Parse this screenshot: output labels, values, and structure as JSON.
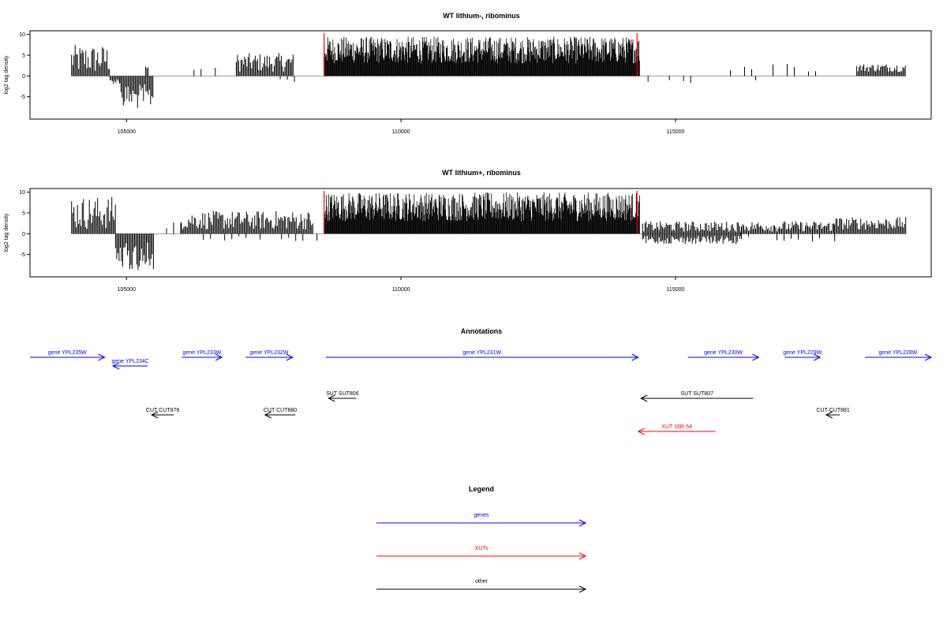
{
  "chart_data": [
    {
      "type": "bar",
      "title": "WT lithium-, ribominus",
      "ylabel": "log2 tag density",
      "xlabel": "",
      "xlim": [
        103300,
        119600
      ],
      "ylim": [
        -10,
        10.5
      ],
      "x_ticks": [
        "105000",
        "110000",
        "115000"
      ],
      "y_ticks": [
        "10",
        "5",
        "0",
        "-5"
      ],
      "grid": false,
      "boundary_markers": [
        108600,
        114300
      ],
      "segments": [
        {
          "x_start": 104000,
          "x_end": 104700,
          "min": 0.5,
          "max": 7.5,
          "sign": "positive"
        },
        {
          "x_start": 104700,
          "x_end": 104900,
          "min": 0.5,
          "max": 2,
          "sign": "negative"
        },
        {
          "x_start": 104900,
          "x_end": 105500,
          "min": 2,
          "max": 8,
          "sign": "negative"
        },
        {
          "x_start": 105350,
          "x_end": 105400,
          "min": 1,
          "max": 2.5,
          "sign": "positive"
        },
        {
          "x_start": 106100,
          "x_end": 106800,
          "min": 1,
          "max": 2,
          "sign": "positive",
          "sparse": true
        },
        {
          "x_start": 107000,
          "x_end": 108050,
          "min": 1,
          "max": 5.5,
          "sign": "positive"
        },
        {
          "x_start": 107800,
          "x_end": 108300,
          "min": 0.5,
          "max": 2.5,
          "sign": "negative",
          "sparse": true
        },
        {
          "x_start": 108600,
          "x_end": 114350,
          "min": 3,
          "max": 9.5,
          "sign": "positive",
          "dense": true
        },
        {
          "x_start": 114500,
          "x_end": 115400,
          "min": 1,
          "max": 2,
          "sign": "negative",
          "sparse": true
        },
        {
          "x_start": 116000,
          "x_end": 117600,
          "min": 1,
          "max": 3,
          "sign": "positive",
          "sparse": true
        },
        {
          "x_start": 116200,
          "x_end": 116700,
          "min": 1,
          "max": 2,
          "sign": "negative",
          "sparse": true
        },
        {
          "x_start": 118300,
          "x_end": 119200,
          "min": 1,
          "max": 3,
          "sign": "positive"
        }
      ]
    },
    {
      "type": "bar",
      "title": "WT lithium+, ribominus",
      "ylabel": "log2 tag density",
      "xlabel": "",
      "xlim": [
        103300,
        119600
      ],
      "ylim": [
        -10,
        10.5
      ],
      "x_ticks": [
        "105000",
        "110000",
        "115000"
      ],
      "y_ticks": [
        "10",
        "5",
        "0",
        "-5"
      ],
      "grid": false,
      "boundary_markers": [
        108600,
        114300
      ],
      "segments": [
        {
          "x_start": 104000,
          "x_end": 104800,
          "min": 1,
          "max": 9,
          "sign": "positive"
        },
        {
          "x_start": 104800,
          "x_end": 105500,
          "min": 2,
          "max": 9,
          "sign": "negative"
        },
        {
          "x_start": 105600,
          "x_end": 105900,
          "min": 0.5,
          "max": 3,
          "sign": "negative",
          "sparse": true
        },
        {
          "x_start": 105600,
          "x_end": 106000,
          "min": 1,
          "max": 3.5,
          "sign": "positive",
          "sparse": true
        },
        {
          "x_start": 106000,
          "x_end": 108400,
          "min": 1,
          "max": 5.5,
          "sign": "positive"
        },
        {
          "x_start": 106400,
          "x_end": 108500,
          "min": 0.5,
          "max": 2,
          "sign": "negative",
          "sparse": true
        },
        {
          "x_start": 108600,
          "x_end": 114350,
          "min": 3,
          "max": 10,
          "sign": "positive",
          "dense": true
        },
        {
          "x_start": 114400,
          "x_end": 116200,
          "min": 0.5,
          "max": 3,
          "sign": "positive"
        },
        {
          "x_start": 114400,
          "x_end": 116200,
          "min": 0.5,
          "max": 2.5,
          "sign": "negative"
        },
        {
          "x_start": 116200,
          "x_end": 117900,
          "min": 0.5,
          "max": 3,
          "sign": "positive"
        },
        {
          "x_start": 116200,
          "x_end": 117900,
          "min": 0.5,
          "max": 2,
          "sign": "negative",
          "sparse": true
        },
        {
          "x_start": 117900,
          "x_end": 119200,
          "min": 1,
          "max": 4,
          "sign": "positive"
        },
        {
          "x_start": 117900,
          "x_end": 118300,
          "min": 0.5,
          "max": 2.5,
          "sign": "negative",
          "sparse": true
        }
      ]
    }
  ],
  "annotations": {
    "title": "Annotations",
    "features": [
      {
        "label": "gene YPL235W",
        "kind": "gene",
        "strand": "+",
        "start": 103300,
        "end": 104650,
        "row": 0
      },
      {
        "label": "gene YPL234C",
        "kind": "gene",
        "strand": "-",
        "start": 104800,
        "end": 105430,
        "row": 1
      },
      {
        "label": "gene YPL233W",
        "kind": "gene",
        "strand": "+",
        "start": 106050,
        "end": 106770,
        "row": 0
      },
      {
        "label": "gene YPL232W",
        "kind": "gene",
        "strand": "+",
        "start": 107200,
        "end": 108050,
        "row": 0
      },
      {
        "label": "gene YPL231W",
        "kind": "gene",
        "strand": "+",
        "start": 108650,
        "end": 114300,
        "row": 0
      },
      {
        "label": "gene YPL230W",
        "kind": "gene",
        "strand": "+",
        "start": 115200,
        "end": 116480,
        "row": 0
      },
      {
        "label": "gene YPL229W",
        "kind": "gene",
        "strand": "+",
        "start": 116950,
        "end": 117590,
        "row": 0
      },
      {
        "label": "gene YPL228W",
        "kind": "gene",
        "strand": "+",
        "start": 118400,
        "end": 119600,
        "row": 0
      },
      {
        "label": "SUT SUT806",
        "kind": "other",
        "strand": "-",
        "start": 108700,
        "end": 109200,
        "row": 2
      },
      {
        "label": "SUT SUT807",
        "kind": "other",
        "strand": "-",
        "start": 114350,
        "end": 116380,
        "row": 2
      },
      {
        "label": "CUT CUT879",
        "kind": "other",
        "strand": "-",
        "start": 105500,
        "end": 105900,
        "row": 3
      },
      {
        "label": "CUT CUT880",
        "kind": "other",
        "strand": "-",
        "start": 107550,
        "end": 108100,
        "row": 3
      },
      {
        "label": "CUT CUT881",
        "kind": "other",
        "strand": "-",
        "start": 117700,
        "end": 117950,
        "row": 3
      },
      {
        "label": "XUT 16R-54",
        "kind": "xut",
        "strand": "-",
        "start": 114300,
        "end": 115700,
        "row": 4
      }
    ]
  },
  "legend": {
    "title": "Legend",
    "items": [
      {
        "label": "genes",
        "kind": "gene"
      },
      {
        "label": "XUTs",
        "kind": "xut"
      },
      {
        "label": "other",
        "kind": "other"
      }
    ]
  },
  "colors": {
    "gene": "#0000ff",
    "xut": "#ff0000",
    "other": "#000000",
    "marker": "#ff0000",
    "bars": "#000000",
    "axis": "#000000",
    "baseline": "#999999"
  }
}
